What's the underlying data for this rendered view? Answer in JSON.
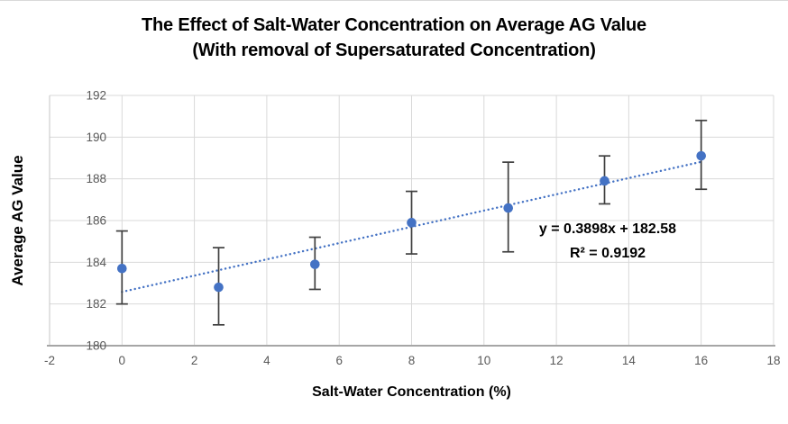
{
  "title": {
    "line1": "The Effect of Salt-Water Concentration on Average AG Value",
    "line2": "(With removal of Supersaturated Concentration)"
  },
  "chart_data": {
    "type": "scatter",
    "title": "The Effect of Salt-Water Concentration on Average AG Value (With removal of Supersaturated Concentration)",
    "xlabel": "Salt-Water Concentration (%)",
    "ylabel": "Average AG Value",
    "xlim": [
      -2,
      18
    ],
    "ylim": [
      180,
      192
    ],
    "xticks": [
      -2,
      0,
      2,
      4,
      6,
      8,
      10,
      12,
      14,
      16,
      18
    ],
    "yticks": [
      180,
      182,
      184,
      186,
      188,
      190,
      192
    ],
    "grid": true,
    "legend": false,
    "series": [
      {
        "name": "Average AG Value",
        "marker": "circle",
        "color": "#4472C4",
        "points": [
          {
            "x": 0,
            "y": 183.7,
            "err_low": 182.0,
            "err_high": 185.5
          },
          {
            "x": 2.67,
            "y": 182.8,
            "err_low": 181.0,
            "err_high": 184.7
          },
          {
            "x": 5.33,
            "y": 183.9,
            "err_low": 182.7,
            "err_high": 185.2
          },
          {
            "x": 8,
            "y": 185.9,
            "err_low": 184.4,
            "err_high": 187.4
          },
          {
            "x": 10.67,
            "y": 186.6,
            "err_low": 184.5,
            "err_high": 188.8
          },
          {
            "x": 13.33,
            "y": 187.9,
            "err_low": 186.8,
            "err_high": 189.1
          },
          {
            "x": 16,
            "y": 189.1,
            "err_low": 187.5,
            "err_high": 190.8
          }
        ]
      }
    ],
    "trendline": {
      "slope": 0.3898,
      "intercept": 182.58,
      "x_start": 0,
      "x_end": 16,
      "style": "dotted",
      "color": "#4472C4",
      "equation_label": "y = 0.3898x + 182.58",
      "r2_label": "R² = 0.9192"
    }
  },
  "colors": {
    "marker": "#4472C4",
    "trendline": "#4472C4",
    "error_bar": "#404040",
    "gridline": "#D9D9D9",
    "left_axis_line": "#C6C6C6",
    "bottom_axis_line": "#A6A6A6",
    "tick_label": "#595959",
    "title_text": "#000000",
    "background": "#FFFFFF"
  }
}
